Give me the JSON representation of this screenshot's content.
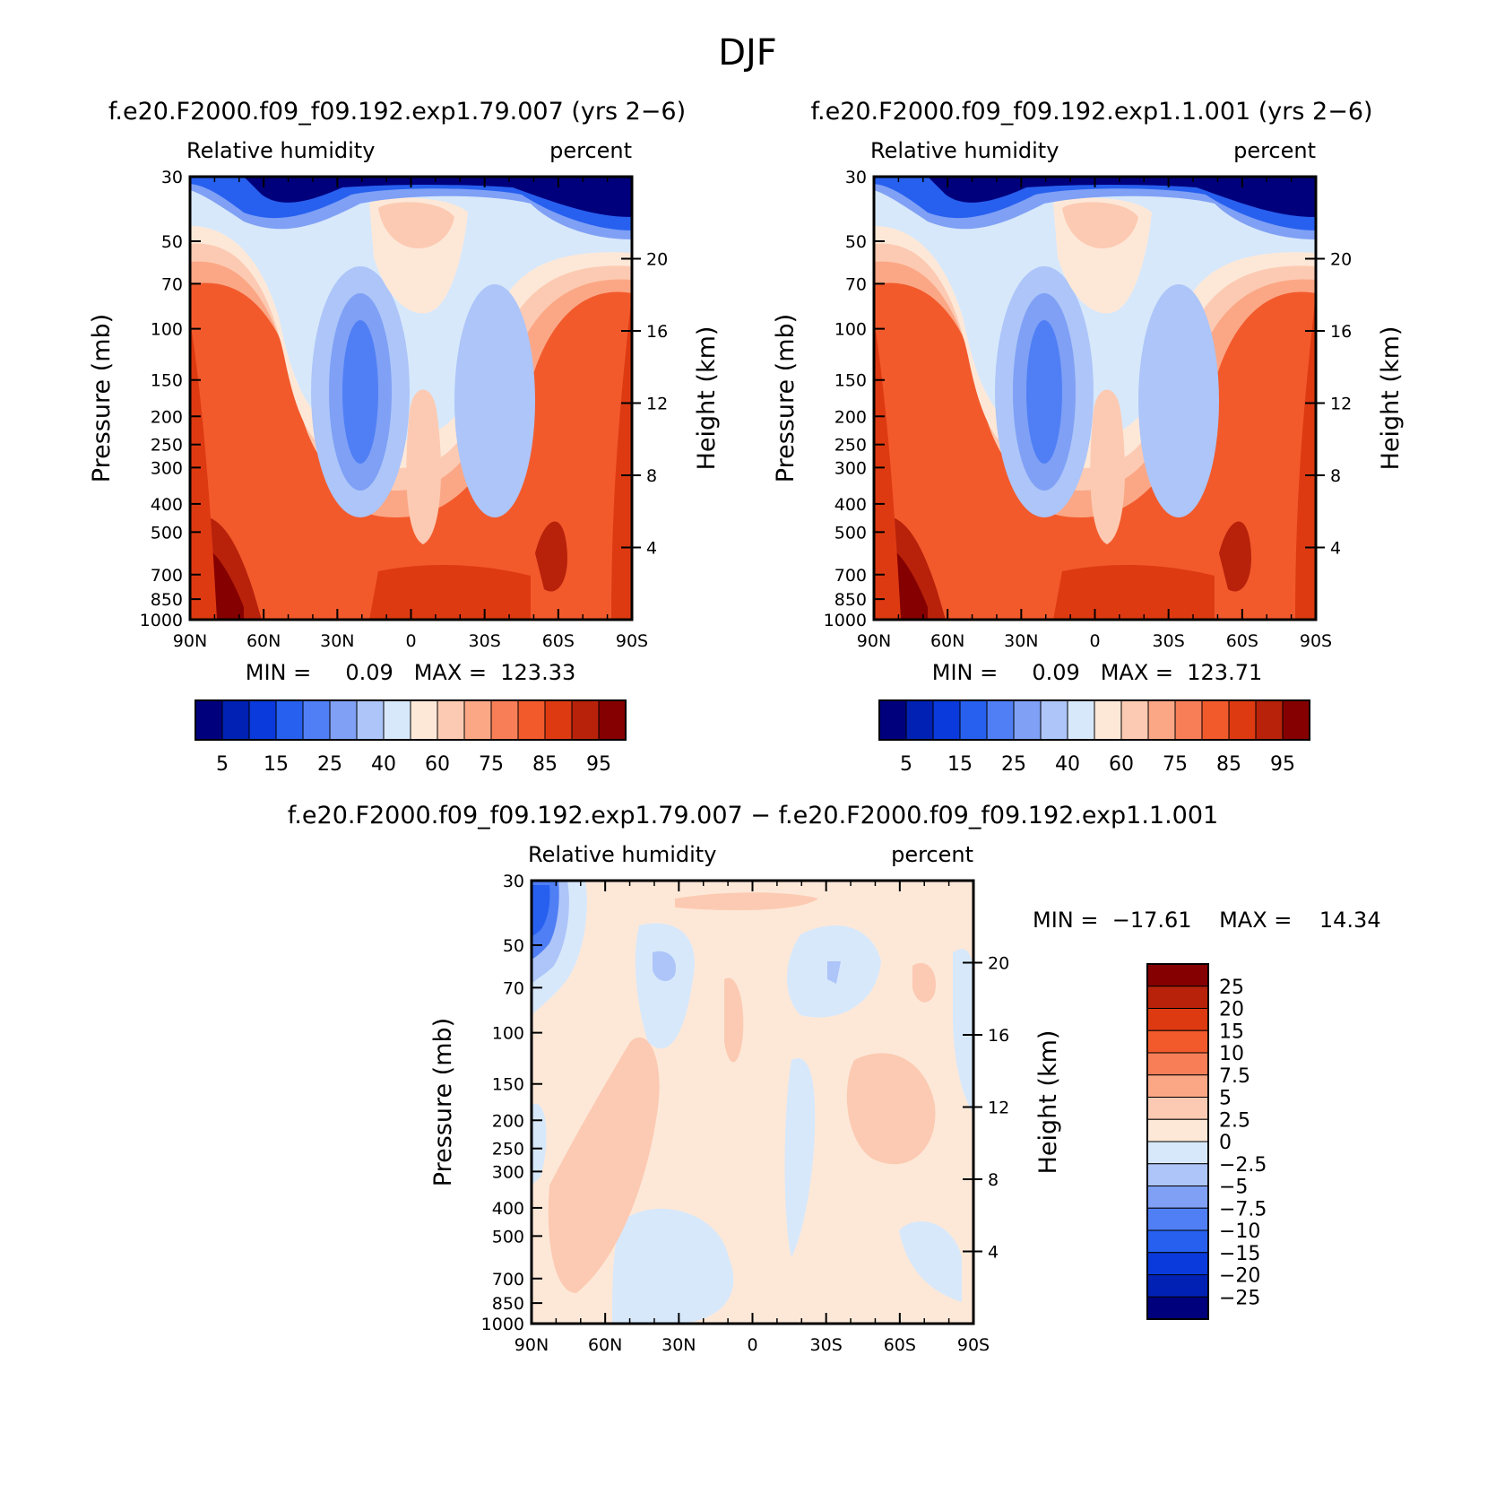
{
  "figure_title": "DJF",
  "chart_data": [
    {
      "type": "heatmap",
      "panel": "top-left",
      "title": "f.e20.F2000.f09_f09.192.exp1.79.007 (yrs 2−6)",
      "left_string": "Relative humidity",
      "right_string": "percent",
      "xlabel": "",
      "ylabel": "Pressure (mb)",
      "ylabel_right": "Height (km)",
      "x_ticks": [
        "90N",
        "60N",
        "30N",
        "0",
        "30S",
        "60S",
        "90S"
      ],
      "y_ticks": [
        "30",
        "50",
        "70",
        "100",
        "150",
        "200",
        "250",
        "300",
        "400",
        "500",
        "700",
        "850",
        "1000"
      ],
      "height_ticks": [
        "20",
        "16",
        "12",
        "8",
        "4"
      ],
      "stats_text": "MIN =     0.09   MAX =  123.33",
      "min": 0.09,
      "max": 123.33,
      "colorbar_labels": [
        "5",
        "15",
        "25",
        "40",
        "60",
        "75",
        "85",
        "95"
      ],
      "colorbar_orientation": "horizontal"
    },
    {
      "type": "heatmap",
      "panel": "top-right",
      "title": "f.e20.F2000.f09_f09.192.exp1.1.001 (yrs 2−6)",
      "left_string": "Relative humidity",
      "right_string": "percent",
      "xlabel": "",
      "ylabel": "Pressure (mb)",
      "ylabel_right": "Height (km)",
      "x_ticks": [
        "90N",
        "60N",
        "30N",
        "0",
        "30S",
        "60S",
        "90S"
      ],
      "y_ticks": [
        "30",
        "50",
        "70",
        "100",
        "150",
        "200",
        "250",
        "300",
        "400",
        "500",
        "700",
        "850",
        "1000"
      ],
      "height_ticks": [
        "20",
        "16",
        "12",
        "8",
        "4"
      ],
      "stats_text": "MIN =     0.09   MAX =  123.71",
      "min": 0.09,
      "max": 123.71,
      "colorbar_labels": [
        "5",
        "15",
        "25",
        "40",
        "60",
        "75",
        "85",
        "95"
      ],
      "colorbar_orientation": "horizontal"
    },
    {
      "type": "heatmap",
      "panel": "bottom",
      "title": "f.e20.F2000.f09_f09.192.exp1.79.007 − f.e20.F2000.f09_f09.192.exp1.1.001",
      "left_string": "Relative humidity",
      "right_string": "percent",
      "xlabel": "",
      "ylabel": "Pressure (mb)",
      "ylabel_right": "Height (km)",
      "x_ticks": [
        "90N",
        "60N",
        "30N",
        "0",
        "30S",
        "60S",
        "90S"
      ],
      "y_ticks": [
        "30",
        "50",
        "70",
        "100",
        "150",
        "200",
        "250",
        "300",
        "400",
        "500",
        "700",
        "850",
        "1000"
      ],
      "height_ticks": [
        "20",
        "16",
        "12",
        "8",
        "4"
      ],
      "stats_text": "MIN =  −17.61    MAX =    14.34",
      "min": -17.61,
      "max": 14.34,
      "colorbar_labels": [
        "25",
        "20",
        "15",
        "10",
        "7.5",
        "5",
        "2.5",
        "0",
        "−2.5",
        "−5",
        "−7.5",
        "−10",
        "−15",
        "−20",
        "−25"
      ],
      "colorbar_orientation": "vertical"
    }
  ],
  "colors": {
    "abs_scale": [
      "#00007d",
      "#0021b4",
      "#0a3adc",
      "#2760ef",
      "#507ff5",
      "#7fa0f5",
      "#adc5f8",
      "#d7e8fb",
      "#fde8d8",
      "#fccab2",
      "#fba786",
      "#f87e58",
      "#f25a2c",
      "#de3a12",
      "#b8220a",
      "#850000"
    ],
    "diff_scale": [
      "#850000",
      "#b8220a",
      "#de3a12",
      "#f25a2c",
      "#f87e58",
      "#fba786",
      "#fccab2",
      "#fde8d8",
      "#d7e8fb",
      "#adc5f8",
      "#7fa0f5",
      "#507ff5",
      "#2760ef",
      "#0a3adc",
      "#0021b4",
      "#00007d"
    ]
  }
}
